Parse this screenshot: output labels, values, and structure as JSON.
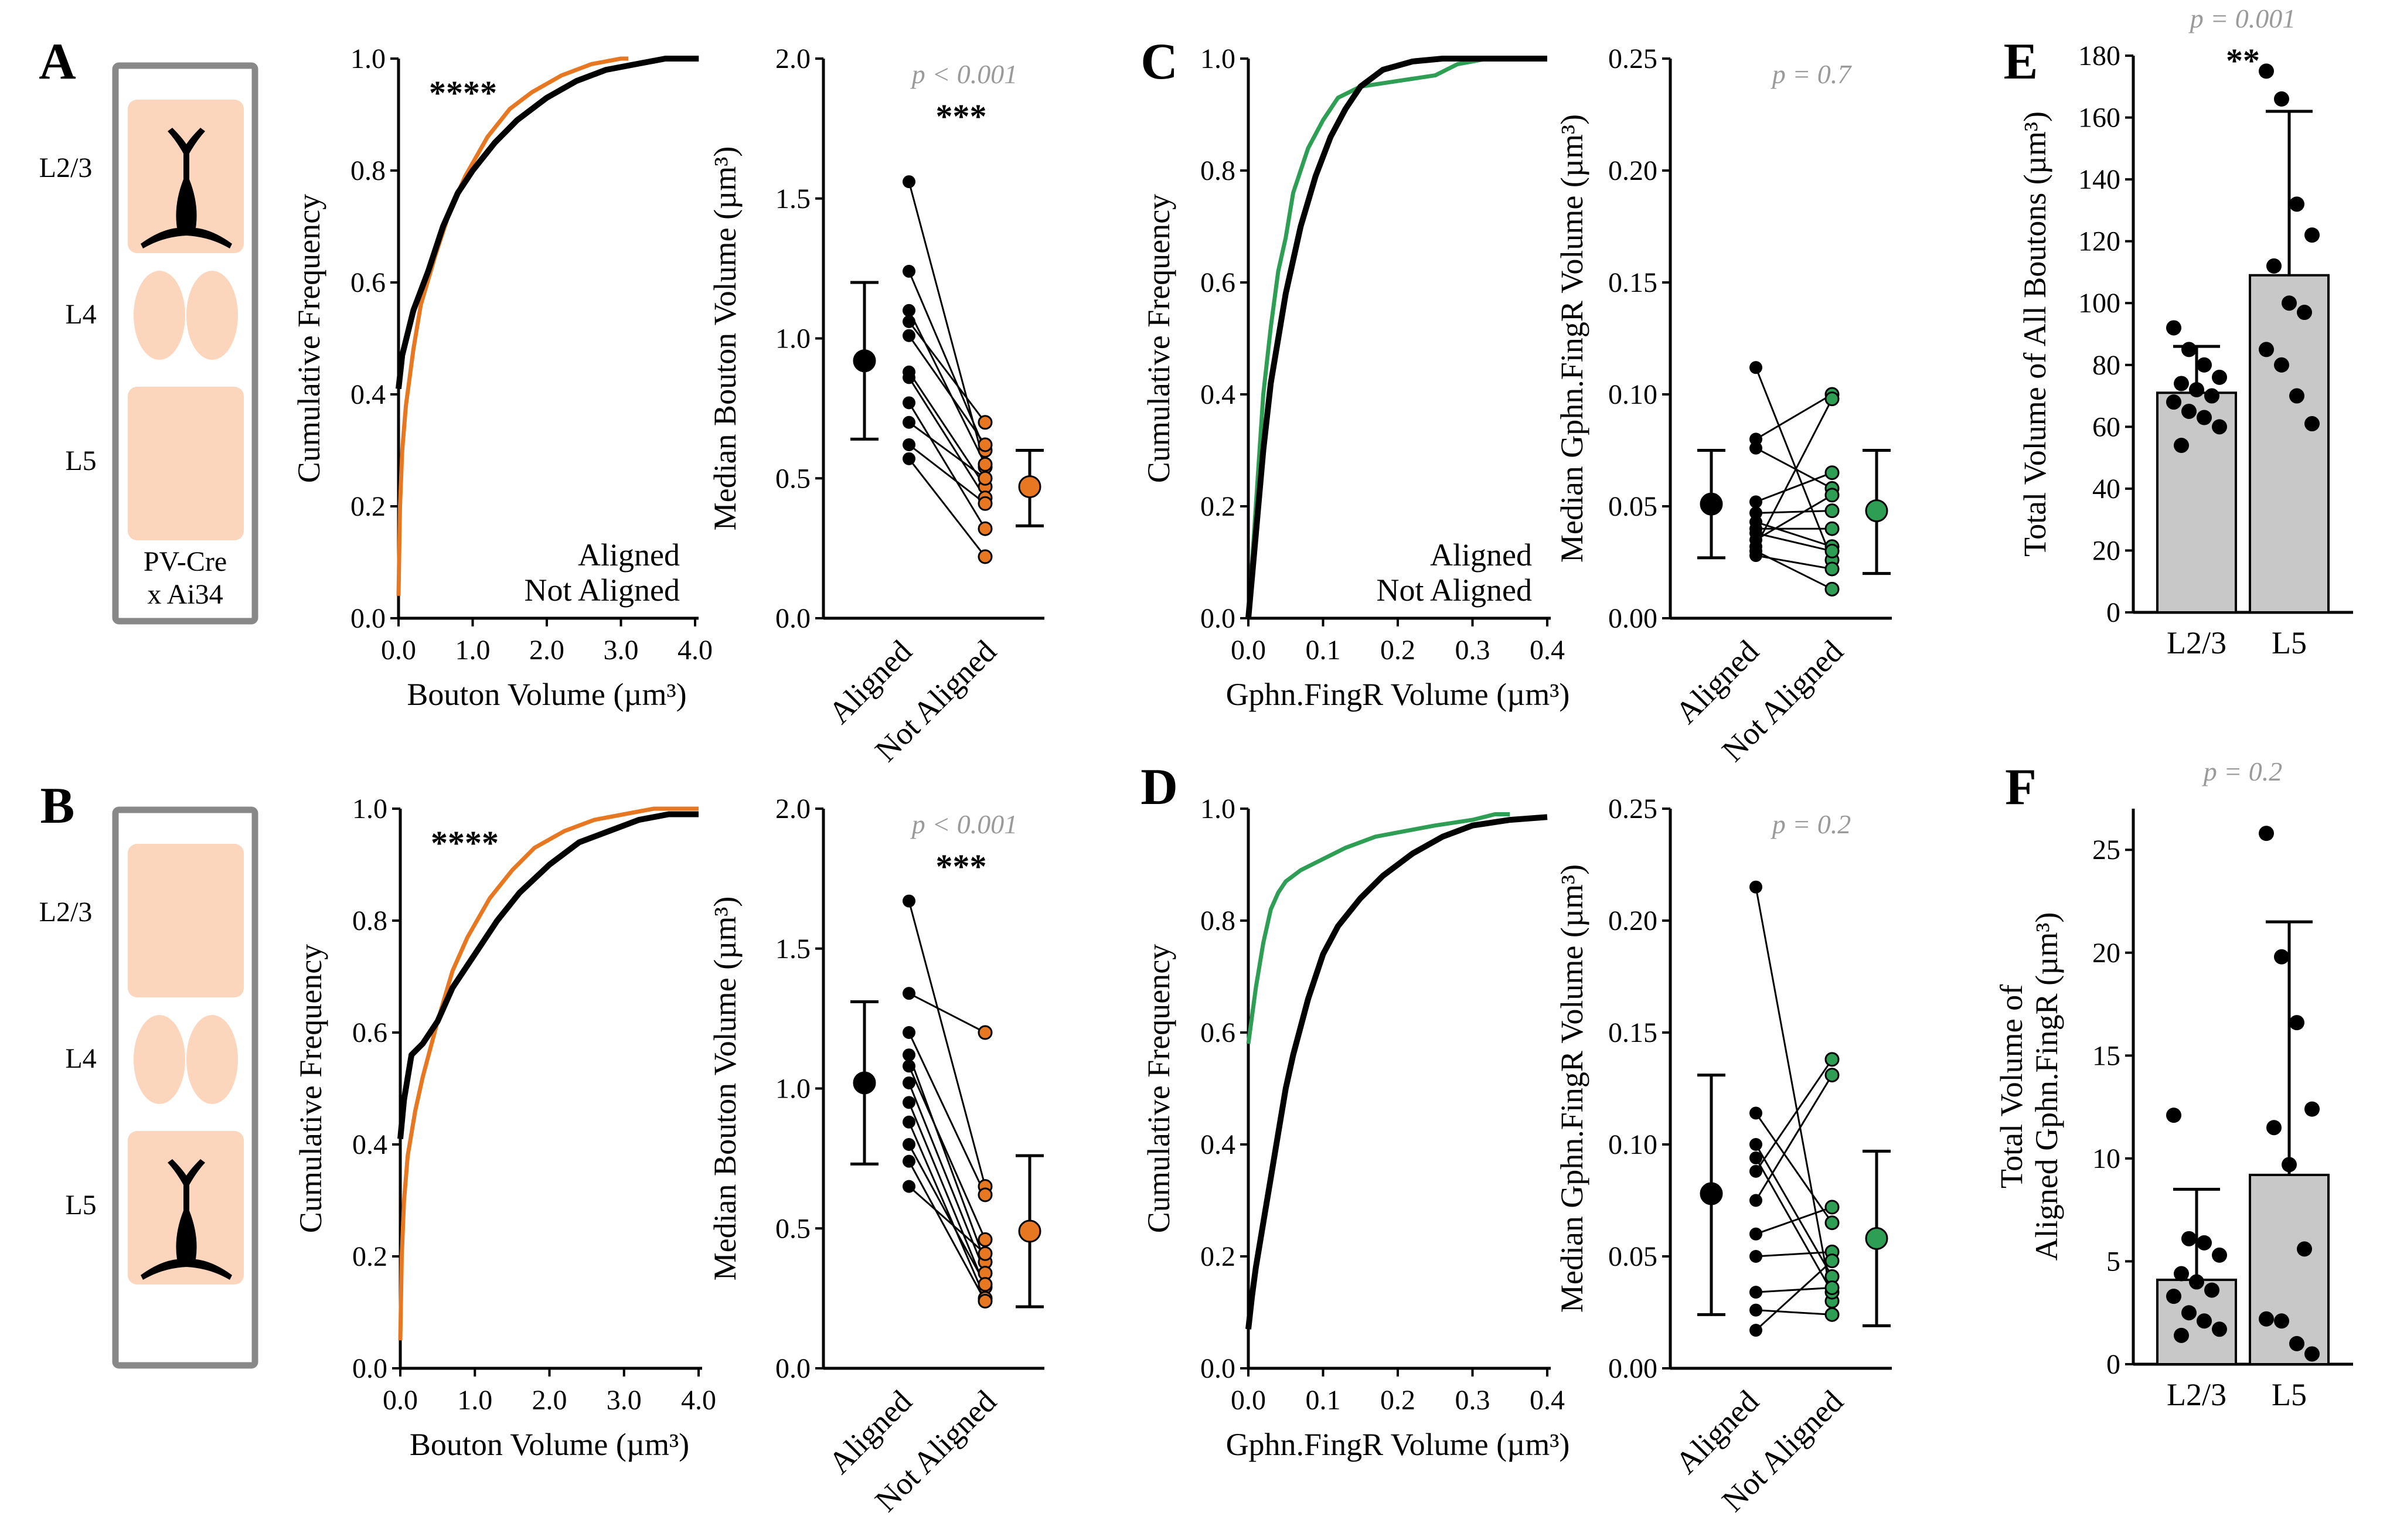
{
  "colors": {
    "aligned": "#000000",
    "not_aligned_bouton": "#e87722",
    "not_aligned_gphn": "#2e9e55",
    "pv_fill": "#fcd5bd",
    "pv_text": "#f0b48a",
    "box_stroke": "#888888",
    "bar_fill": "#c8c8c8",
    "pvalue_text": "#9a9a9a"
  },
  "schematics": [
    {
      "letter": "A",
      "layers": [
        "L2/3",
        "L4",
        "L5"
      ],
      "neuron_layer": "L2/3",
      "cre_line": [
        "PV-Cre",
        "x Ai34"
      ]
    },
    {
      "letter": "B",
      "layers": [
        "L2/3",
        "L4",
        "L5"
      ],
      "neuron_layer": "L5"
    }
  ],
  "chart_data": [
    {
      "id": "A-cdf",
      "panel": "A",
      "type": "line",
      "title": "",
      "significance": "****",
      "xlabel": "Bouton Volume (µm³)",
      "ylabel": "Cumulative Frequency",
      "xlim": [
        0,
        4.0
      ],
      "ylim": [
        0,
        1.0
      ],
      "xticks": [
        "0.0",
        "1.0",
        "2.0",
        "3.0",
        "4.0"
      ],
      "yticks": [
        "0.0",
        "0.2",
        "0.4",
        "0.6",
        "0.8",
        "1.0"
      ],
      "legend": [
        "Aligned",
        "Not Aligned"
      ],
      "series": [
        {
          "name": "Aligned",
          "x": [
            0,
            0.05,
            0.2,
            0.4,
            0.6,
            0.8,
            1.0,
            1.3,
            1.6,
            2.0,
            2.4,
            2.8,
            3.2,
            3.6,
            3.8,
            4.05
          ],
          "y": [
            0.41,
            0.47,
            0.55,
            0.62,
            0.7,
            0.76,
            0.8,
            0.85,
            0.89,
            0.93,
            0.96,
            0.98,
            0.99,
            1.0,
            1.0,
            1.0
          ]
        },
        {
          "name": "Not Aligned",
          "x": [
            0,
            0.02,
            0.05,
            0.1,
            0.2,
            0.3,
            0.5,
            0.7,
            0.9,
            1.2,
            1.5,
            1.8,
            2.2,
            2.6,
            3.0,
            3.1
          ],
          "y": [
            0.04,
            0.2,
            0.3,
            0.38,
            0.48,
            0.56,
            0.65,
            0.73,
            0.79,
            0.86,
            0.91,
            0.94,
            0.97,
            0.99,
            1.0,
            1.0
          ]
        }
      ]
    },
    {
      "id": "A-median",
      "panel": "A",
      "type": "scatter",
      "pvalue": "p < 0.001",
      "significance": "***",
      "ylabel": "Median Bouton Volume (µm³)",
      "ylim": [
        0,
        2.0
      ],
      "yticks": [
        "0.0",
        "0.5",
        "1.0",
        "1.5",
        "2.0"
      ],
      "categories": [
        "Aligned",
        "Not Aligned"
      ],
      "pairs": [
        [
          1.56,
          0.54
        ],
        [
          1.24,
          0.6
        ],
        [
          1.1,
          0.55
        ],
        [
          1.06,
          0.7
        ],
        [
          1.01,
          0.62
        ],
        [
          0.88,
          0.47
        ],
        [
          0.86,
          0.43
        ],
        [
          0.77,
          0.32
        ],
        [
          0.7,
          0.5
        ],
        [
          0.62,
          0.41
        ],
        [
          0.57,
          0.22
        ]
      ],
      "summary": [
        {
          "mean": 0.92,
          "low": 0.64,
          "high": 1.2
        },
        {
          "mean": 0.47,
          "low": 0.33,
          "high": 0.6
        }
      ]
    },
    {
      "id": "B-cdf",
      "panel": "B",
      "type": "line",
      "title": "",
      "significance": "****",
      "xlabel": "Bouton Volume (µm³)",
      "ylabel": "Cumulative Frequency",
      "xlim": [
        0,
        4.0
      ],
      "ylim": [
        0,
        1.0
      ],
      "xticks": [
        "0.0",
        "1.0",
        "2.0",
        "3.0",
        "4.0"
      ],
      "yticks": [
        "0.0",
        "0.2",
        "0.4",
        "0.6",
        "0.8",
        "1.0"
      ],
      "legend": [],
      "series": [
        {
          "name": "Aligned",
          "x": [
            0,
            0.05,
            0.15,
            0.3,
            0.5,
            0.7,
            1.0,
            1.3,
            1.6,
            2.0,
            2.4,
            2.8,
            3.2,
            3.6,
            4.0
          ],
          "y": [
            0.41,
            0.48,
            0.56,
            0.58,
            0.62,
            0.68,
            0.74,
            0.8,
            0.85,
            0.9,
            0.94,
            0.96,
            0.98,
            0.99,
            0.99
          ]
        },
        {
          "name": "Not Aligned",
          "x": [
            0,
            0.02,
            0.05,
            0.1,
            0.2,
            0.3,
            0.5,
            0.7,
            0.9,
            1.2,
            1.5,
            1.8,
            2.2,
            2.6,
            3.0,
            3.4,
            4.0
          ],
          "y": [
            0.05,
            0.2,
            0.3,
            0.38,
            0.46,
            0.52,
            0.62,
            0.71,
            0.77,
            0.84,
            0.89,
            0.93,
            0.96,
            0.98,
            0.99,
            1.0,
            1.0
          ]
        }
      ]
    },
    {
      "id": "B-median",
      "panel": "B",
      "type": "scatter",
      "pvalue": "p < 0.001",
      "significance": "***",
      "ylabel": "Median Bouton Volume (µm³)",
      "ylim": [
        0,
        2.0
      ],
      "yticks": [
        "0.0",
        "0.5",
        "1.0",
        "1.5",
        "2.0"
      ],
      "categories": [
        "Aligned",
        "Not Aligned"
      ],
      "pairs": [
        [
          1.67,
          0.65
        ],
        [
          1.34,
          1.2
        ],
        [
          1.2,
          0.62
        ],
        [
          1.12,
          0.38
        ],
        [
          1.08,
          0.46
        ],
        [
          1.02,
          0.34
        ],
        [
          0.95,
          0.29
        ],
        [
          0.88,
          0.25
        ],
        [
          0.8,
          0.3
        ],
        [
          0.74,
          0.24
        ],
        [
          0.65,
          0.41
        ]
      ],
      "summary": [
        {
          "mean": 1.02,
          "low": 0.73,
          "high": 1.31
        },
        {
          "mean": 0.49,
          "low": 0.22,
          "high": 0.76
        }
      ]
    },
    {
      "id": "C-cdf",
      "panel": "C",
      "type": "line",
      "title": "",
      "xlabel": "Gphn.FingR Volume (µm³)",
      "ylabel": "Cumulative Frequency",
      "xlim": [
        0,
        0.4
      ],
      "ylim": [
        0,
        1.0
      ],
      "xticks": [
        "0.0",
        "0.1",
        "0.2",
        "0.3",
        "0.4"
      ],
      "yticks": [
        "0.0",
        "0.2",
        "0.4",
        "0.6",
        "0.8",
        "1.0"
      ],
      "legend": [
        "Aligned",
        "Not Aligned"
      ],
      "series": [
        {
          "name": "Aligned",
          "x": [
            0,
            0.01,
            0.02,
            0.03,
            0.05,
            0.07,
            0.09,
            0.11,
            0.13,
            0.15,
            0.18,
            0.22,
            0.26,
            0.3,
            0.35,
            0.4
          ],
          "y": [
            0,
            0.15,
            0.3,
            0.42,
            0.58,
            0.7,
            0.79,
            0.86,
            0.91,
            0.95,
            0.98,
            0.995,
            1.0,
            1.0,
            1.0,
            1.0
          ]
        },
        {
          "name": "Not Aligned",
          "x": [
            0,
            0.01,
            0.02,
            0.03,
            0.04,
            0.05,
            0.06,
            0.08,
            0.1,
            0.12,
            0.15,
            0.2,
            0.25,
            0.28,
            0.32,
            0.4
          ],
          "y": [
            0,
            0.2,
            0.4,
            0.52,
            0.62,
            0.68,
            0.76,
            0.84,
            0.89,
            0.93,
            0.95,
            0.96,
            0.97,
            0.99,
            1.0,
            1.0
          ]
        }
      ]
    },
    {
      "id": "C-median",
      "panel": "C",
      "type": "scatter",
      "pvalue": "p = 0.7",
      "significance": "",
      "ylabel": "Median Gphn.FingR Volume  (µm³)",
      "ylim": [
        0,
        0.25
      ],
      "yticks": [
        "0.00",
        "0.05",
        "0.10",
        "0.15",
        "0.20",
        "0.25"
      ],
      "categories": [
        "Aligned",
        "Not Aligned"
      ],
      "pairs": [
        [
          0.112,
          0.026
        ],
        [
          0.08,
          0.1
        ],
        [
          0.076,
          0.058
        ],
        [
          0.052,
          0.065
        ],
        [
          0.047,
          0.048
        ],
        [
          0.043,
          0.032
        ],
        [
          0.04,
          0.04
        ],
        [
          0.038,
          0.03
        ],
        [
          0.035,
          0.055
        ],
        [
          0.032,
          0.098
        ],
        [
          0.03,
          0.013
        ],
        [
          0.028,
          0.022
        ]
      ],
      "summary": [
        {
          "mean": 0.051,
          "low": 0.027,
          "high": 0.075
        },
        {
          "mean": 0.048,
          "low": 0.02,
          "high": 0.075
        }
      ]
    },
    {
      "id": "D-cdf",
      "panel": "D",
      "type": "line",
      "title": "",
      "xlabel": "Gphn.FingR Volume (µm³)",
      "ylabel": "Cumulative Frequency",
      "xlim": [
        0,
        0.4
      ],
      "ylim": [
        0,
        1.0
      ],
      "xticks": [
        "0.0",
        "0.1",
        "0.2",
        "0.3",
        "0.4"
      ],
      "yticks": [
        "0.0",
        "0.2",
        "0.4",
        "0.6",
        "0.8",
        "1.0"
      ],
      "legend": [],
      "series": [
        {
          "name": "Aligned",
          "x": [
            0,
            0.005,
            0.01,
            0.02,
            0.03,
            0.04,
            0.05,
            0.06,
            0.08,
            0.1,
            0.12,
            0.15,
            0.18,
            0.22,
            0.26,
            0.3,
            0.35,
            0.4
          ],
          "y": [
            0.07,
            0.13,
            0.18,
            0.26,
            0.34,
            0.42,
            0.5,
            0.56,
            0.66,
            0.74,
            0.79,
            0.84,
            0.88,
            0.92,
            0.95,
            0.97,
            0.98,
            0.985
          ]
        },
        {
          "name": "Not Aligned",
          "x": [
            0,
            0.005,
            0.01,
            0.02,
            0.03,
            0.04,
            0.05,
            0.07,
            0.1,
            0.13,
            0.17,
            0.21,
            0.25,
            0.3,
            0.33,
            0.35
          ],
          "y": [
            0.58,
            0.63,
            0.68,
            0.76,
            0.82,
            0.85,
            0.87,
            0.89,
            0.91,
            0.93,
            0.95,
            0.96,
            0.97,
            0.98,
            0.99,
            0.99
          ]
        }
      ]
    },
    {
      "id": "D-median",
      "panel": "D",
      "type": "scatter",
      "pvalue": "p = 0.2",
      "significance": "",
      "ylabel": "Median Gphn.FingR Volume  (µm³)",
      "ylim": [
        0,
        0.25
      ],
      "yticks": [
        "0.00",
        "0.05",
        "0.10",
        "0.15",
        "0.20",
        "0.25"
      ],
      "categories": [
        "Aligned",
        "Not Aligned"
      ],
      "pairs": [
        [
          0.215,
          0.03
        ],
        [
          0.114,
          0.065
        ],
        [
          0.1,
          0.041
        ],
        [
          0.094,
          0.034
        ],
        [
          0.088,
          0.138
        ],
        [
          0.075,
          0.131
        ],
        [
          0.06,
          0.072
        ],
        [
          0.05,
          0.052
        ],
        [
          0.034,
          0.036
        ],
        [
          0.026,
          0.024
        ],
        [
          0.017,
          0.048
        ]
      ],
      "summary": [
        {
          "mean": 0.078,
          "low": 0.024,
          "high": 0.131
        },
        {
          "mean": 0.058,
          "low": 0.019,
          "high": 0.097
        }
      ]
    },
    {
      "id": "E-bar",
      "panel": "E",
      "type": "bar",
      "pvalue": "p = 0.001",
      "significance": "**",
      "ylabel": "Total Volume of All Boutons (µm³)",
      "ylim": [
        0,
        180
      ],
      "yticks": [
        "0",
        "20",
        "40",
        "60",
        "80",
        "100",
        "120",
        "140",
        "160",
        "180"
      ],
      "categories": [
        "L2/3",
        "L5"
      ],
      "values": [
        71,
        109
      ],
      "errors": [
        15,
        53
      ],
      "points": [
        [
          92,
          85,
          80,
          76,
          74,
          72,
          70,
          68,
          65,
          63,
          60,
          54
        ],
        [
          175,
          166,
          132,
          122,
          112,
          100,
          97,
          85,
          80,
          70,
          61
        ]
      ]
    },
    {
      "id": "F-bar",
      "panel": "F",
      "type": "bar",
      "pvalue": "p = 0.2",
      "significance": "",
      "ylabel": [
        "Total Volume of",
        "Aligned Gphn.FingR (µm³)"
      ],
      "ylim": [
        0,
        27
      ],
      "yticks": [
        "0",
        "5",
        "10",
        "15",
        "20",
        "25"
      ],
      "categories": [
        "L2/3",
        "L5"
      ],
      "values": [
        4.1,
        9.2
      ],
      "errors": [
        4.4,
        12.3
      ],
      "points": [
        [
          12.1,
          6.1,
          5.9,
          5.3,
          4.4,
          4.0,
          3.6,
          3.3,
          2.5,
          2.1,
          1.7,
          1.4
        ],
        [
          25.8,
          19.8,
          16.6,
          12.4,
          11.5,
          9.7,
          5.6,
          2.2,
          2.1,
          1.0,
          0.5
        ]
      ]
    }
  ]
}
